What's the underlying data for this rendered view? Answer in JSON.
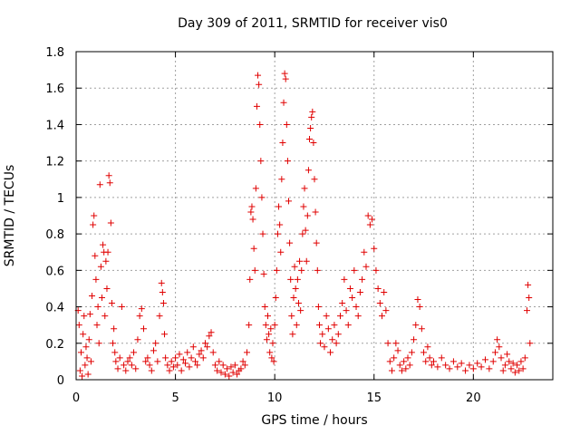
{
  "chart_data": {
    "type": "scatter",
    "title": "Day 309 of 2011, SRMTID for receiver vis0",
    "xlabel": "GPS time / hours",
    "ylabel": "SRMTID / TECUs",
    "xlim": [
      0,
      24
    ],
    "ylim": [
      0,
      1.8
    ],
    "xticks": [
      0,
      5,
      10,
      15,
      20
    ],
    "yticks": [
      0,
      0.2,
      0.4,
      0.6,
      0.8,
      1,
      1.2,
      1.4,
      1.6,
      1.8
    ],
    "ytick_labels": [
      "0",
      "0.2",
      "0.4",
      "0.6",
      "0.8",
      "1",
      "1.2",
      "1.4",
      "1.6",
      "1.8"
    ],
    "grid": true,
    "marker": "+",
    "color": "#e00000",
    "series": [
      {
        "points": [
          [
            0.1,
            0.38
          ],
          [
            0.15,
            0.3
          ],
          [
            0.2,
            0.05
          ],
          [
            0.25,
            0.15
          ],
          [
            0.3,
            0.02
          ],
          [
            0.35,
            0.25
          ],
          [
            0.4,
            0.35
          ],
          [
            0.45,
            0.08
          ],
          [
            0.5,
            0.18
          ],
          [
            0.55,
            0.12
          ],
          [
            0.6,
            0.03
          ],
          [
            0.65,
            0.22
          ],
          [
            0.7,
            0.36
          ],
          [
            0.75,
            0.1
          ],
          [
            0.8,
            0.46
          ],
          [
            0.85,
            0.85
          ],
          [
            0.9,
            0.9
          ],
          [
            0.95,
            0.68
          ],
          [
            1.0,
            0.55
          ],
          [
            1.05,
            0.3
          ],
          [
            1.1,
            0.4
          ],
          [
            1.15,
            0.2
          ],
          [
            1.2,
            1.07
          ],
          [
            1.25,
            0.62
          ],
          [
            1.3,
            0.45
          ],
          [
            1.35,
            0.74
          ],
          [
            1.4,
            0.7
          ],
          [
            1.45,
            0.35
          ],
          [
            1.5,
            0.65
          ],
          [
            1.55,
            0.5
          ],
          [
            1.6,
            0.7
          ],
          [
            1.65,
            1.12
          ],
          [
            1.7,
            1.08
          ],
          [
            1.75,
            0.86
          ],
          [
            1.8,
            0.42
          ],
          [
            1.85,
            0.2
          ],
          [
            1.9,
            0.28
          ],
          [
            1.95,
            0.15
          ],
          [
            2.0,
            0.1
          ],
          [
            2.1,
            0.06
          ],
          [
            2.2,
            0.12
          ],
          [
            2.3,
            0.4
          ],
          [
            2.4,
            0.08
          ],
          [
            2.5,
            0.05
          ],
          [
            2.6,
            0.1
          ],
          [
            2.7,
            0.12
          ],
          [
            2.8,
            0.08
          ],
          [
            2.9,
            0.15
          ],
          [
            3.0,
            0.06
          ],
          [
            3.1,
            0.22
          ],
          [
            3.2,
            0.35
          ],
          [
            3.3,
            0.39
          ],
          [
            3.4,
            0.28
          ],
          [
            3.5,
            0.1
          ],
          [
            3.6,
            0.12
          ],
          [
            3.7,
            0.08
          ],
          [
            3.8,
            0.05
          ],
          [
            3.9,
            0.16
          ],
          [
            4.0,
            0.2
          ],
          [
            4.1,
            0.1
          ],
          [
            4.2,
            0.35
          ],
          [
            4.3,
            0.53
          ],
          [
            4.35,
            0.48
          ],
          [
            4.4,
            0.42
          ],
          [
            4.45,
            0.25
          ],
          [
            4.5,
            0.12
          ],
          [
            4.6,
            0.08
          ],
          [
            4.7,
            0.05
          ],
          [
            4.8,
            0.1
          ],
          [
            4.9,
            0.07
          ],
          [
            5.0,
            0.12
          ],
          [
            5.1,
            0.08
          ],
          [
            5.2,
            0.14
          ],
          [
            5.3,
            0.05
          ],
          [
            5.4,
            0.11
          ],
          [
            5.5,
            0.09
          ],
          [
            5.6,
            0.15
          ],
          [
            5.7,
            0.07
          ],
          [
            5.8,
            0.12
          ],
          [
            5.9,
            0.18
          ],
          [
            6.0,
            0.1
          ],
          [
            6.1,
            0.08
          ],
          [
            6.2,
            0.14
          ],
          [
            6.3,
            0.16
          ],
          [
            6.4,
            0.12
          ],
          [
            6.5,
            0.2
          ],
          [
            6.6,
            0.18
          ],
          [
            6.7,
            0.24
          ],
          [
            6.8,
            0.26
          ],
          [
            6.9,
            0.15
          ],
          [
            7.0,
            0.08
          ],
          [
            7.1,
            0.05
          ],
          [
            7.2,
            0.1
          ],
          [
            7.3,
            0.04
          ],
          [
            7.4,
            0.08
          ],
          [
            7.5,
            0.03
          ],
          [
            7.6,
            0.06
          ],
          [
            7.7,
            0.02
          ],
          [
            7.8,
            0.07
          ],
          [
            7.9,
            0.04
          ],
          [
            8.0,
            0.08
          ],
          [
            8.1,
            0.03
          ],
          [
            8.2,
            0.05
          ],
          [
            8.3,
            0.06
          ],
          [
            8.4,
            0.1
          ],
          [
            8.5,
            0.08
          ],
          [
            8.6,
            0.15
          ],
          [
            8.7,
            0.3
          ],
          [
            8.75,
            0.55
          ],
          [
            8.8,
            0.92
          ],
          [
            8.85,
            0.95
          ],
          [
            8.9,
            0.88
          ],
          [
            8.95,
            0.72
          ],
          [
            9.0,
            0.6
          ],
          [
            9.05,
            1.05
          ],
          [
            9.1,
            1.5
          ],
          [
            9.15,
            1.67
          ],
          [
            9.2,
            1.62
          ],
          [
            9.25,
            1.4
          ],
          [
            9.3,
            1.2
          ],
          [
            9.35,
            1.0
          ],
          [
            9.4,
            0.8
          ],
          [
            9.45,
            0.58
          ],
          [
            9.5,
            0.4
          ],
          [
            9.55,
            0.3
          ],
          [
            9.6,
            0.22
          ],
          [
            9.65,
            0.35
          ],
          [
            9.7,
            0.25
          ],
          [
            9.75,
            0.15
          ],
          [
            9.8,
            0.28
          ],
          [
            9.85,
            0.12
          ],
          [
            9.9,
            0.2
          ],
          [
            9.95,
            0.1
          ],
          [
            10.0,
            0.3
          ],
          [
            10.05,
            0.45
          ],
          [
            10.1,
            0.6
          ],
          [
            10.15,
            0.8
          ],
          [
            10.2,
            0.95
          ],
          [
            10.25,
            0.85
          ],
          [
            10.3,
            0.7
          ],
          [
            10.35,
            1.1
          ],
          [
            10.4,
            1.3
          ],
          [
            10.45,
            1.52
          ],
          [
            10.5,
            1.68
          ],
          [
            10.55,
            1.65
          ],
          [
            10.6,
            1.4
          ],
          [
            10.65,
            1.2
          ],
          [
            10.7,
            0.98
          ],
          [
            10.75,
            0.75
          ],
          [
            10.8,
            0.55
          ],
          [
            10.85,
            0.35
          ],
          [
            10.9,
            0.25
          ],
          [
            10.95,
            0.45
          ],
          [
            11.0,
            0.62
          ],
          [
            11.05,
            0.5
          ],
          [
            11.1,
            0.3
          ],
          [
            11.15,
            0.55
          ],
          [
            11.2,
            0.42
          ],
          [
            11.25,
            0.65
          ],
          [
            11.3,
            0.38
          ],
          [
            11.35,
            0.6
          ],
          [
            11.4,
            0.8
          ],
          [
            11.45,
            0.95
          ],
          [
            11.5,
            1.05
          ],
          [
            11.55,
            0.82
          ],
          [
            11.6,
            0.65
          ],
          [
            11.65,
            0.9
          ],
          [
            11.7,
            1.15
          ],
          [
            11.75,
            1.32
          ],
          [
            11.8,
            1.38
          ],
          [
            11.85,
            1.44
          ],
          [
            11.9,
            1.47
          ],
          [
            11.95,
            1.3
          ],
          [
            12.0,
            1.1
          ],
          [
            12.05,
            0.92
          ],
          [
            12.1,
            0.75
          ],
          [
            12.15,
            0.6
          ],
          [
            12.2,
            0.4
          ],
          [
            12.25,
            0.3
          ],
          [
            12.3,
            0.2
          ],
          [
            12.4,
            0.25
          ],
          [
            12.5,
            0.18
          ],
          [
            12.6,
            0.35
          ],
          [
            12.7,
            0.28
          ],
          [
            12.8,
            0.15
          ],
          [
            12.9,
            0.22
          ],
          [
            13.0,
            0.3
          ],
          [
            13.1,
            0.2
          ],
          [
            13.2,
            0.25
          ],
          [
            13.3,
            0.35
          ],
          [
            13.4,
            0.42
          ],
          [
            13.5,
            0.55
          ],
          [
            13.6,
            0.38
          ],
          [
            13.7,
            0.3
          ],
          [
            13.8,
            0.5
          ],
          [
            13.9,
            0.45
          ],
          [
            14.0,
            0.6
          ],
          [
            14.1,
            0.4
          ],
          [
            14.2,
            0.35
          ],
          [
            14.3,
            0.48
          ],
          [
            14.4,
            0.55
          ],
          [
            14.5,
            0.7
          ],
          [
            14.6,
            0.62
          ],
          [
            14.7,
            0.9
          ],
          [
            14.8,
            0.85
          ],
          [
            14.9,
            0.88
          ],
          [
            15.0,
            0.72
          ],
          [
            15.1,
            0.6
          ],
          [
            15.2,
            0.5
          ],
          [
            15.3,
            0.42
          ],
          [
            15.4,
            0.35
          ],
          [
            15.5,
            0.48
          ],
          [
            15.6,
            0.38
          ],
          [
            15.7,
            0.2
          ],
          [
            15.8,
            0.1
          ],
          [
            15.9,
            0.05
          ],
          [
            16.0,
            0.12
          ],
          [
            16.1,
            0.2
          ],
          [
            16.2,
            0.16
          ],
          [
            16.3,
            0.08
          ],
          [
            16.4,
            0.05
          ],
          [
            16.5,
            0.1
          ],
          [
            16.6,
            0.06
          ],
          [
            16.7,
            0.12
          ],
          [
            16.8,
            0.08
          ],
          [
            16.9,
            0.15
          ],
          [
            17.0,
            0.22
          ],
          [
            17.1,
            0.3
          ],
          [
            17.2,
            0.44
          ],
          [
            17.3,
            0.4
          ],
          [
            17.4,
            0.28
          ],
          [
            17.5,
            0.15
          ],
          [
            17.6,
            0.1
          ],
          [
            17.7,
            0.18
          ],
          [
            17.8,
            0.12
          ],
          [
            17.9,
            0.08
          ],
          [
            18.0,
            0.1
          ],
          [
            18.2,
            0.07
          ],
          [
            18.4,
            0.12
          ],
          [
            18.6,
            0.08
          ],
          [
            18.8,
            0.06
          ],
          [
            19.0,
            0.1
          ],
          [
            19.2,
            0.07
          ],
          [
            19.4,
            0.09
          ],
          [
            19.6,
            0.05
          ],
          [
            19.8,
            0.08
          ],
          [
            20.0,
            0.06
          ],
          [
            20.2,
            0.09
          ],
          [
            20.4,
            0.07
          ],
          [
            20.6,
            0.11
          ],
          [
            20.8,
            0.06
          ],
          [
            21.0,
            0.1
          ],
          [
            21.1,
            0.15
          ],
          [
            21.2,
            0.22
          ],
          [
            21.3,
            0.18
          ],
          [
            21.4,
            0.12
          ],
          [
            21.5,
            0.05
          ],
          [
            21.6,
            0.08
          ],
          [
            21.7,
            0.14
          ],
          [
            21.8,
            0.1
          ],
          [
            21.9,
            0.06
          ],
          [
            22.0,
            0.09
          ],
          [
            22.1,
            0.04
          ],
          [
            22.2,
            0.08
          ],
          [
            22.3,
            0.05
          ],
          [
            22.4,
            0.1
          ],
          [
            22.5,
            0.06
          ],
          [
            22.6,
            0.12
          ],
          [
            22.7,
            0.38
          ],
          [
            22.75,
            0.52
          ],
          [
            22.8,
            0.45
          ],
          [
            22.85,
            0.2
          ]
        ]
      }
    ]
  }
}
